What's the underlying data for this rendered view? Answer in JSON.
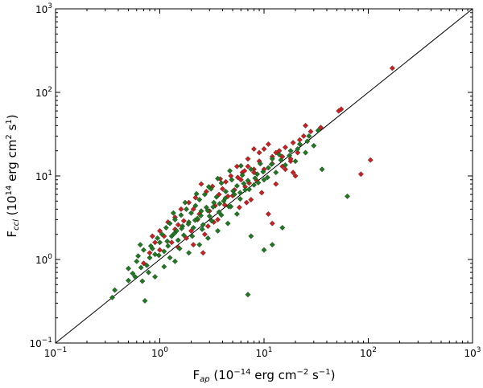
{
  "chart_data": {
    "type": "scatter",
    "xscale": "log",
    "yscale": "log",
    "xlim": [
      0.1,
      1000
    ],
    "ylim": [
      0.1,
      1000
    ],
    "grid": false,
    "xlabel": {
      "prefix": "F",
      "sub": "ap",
      "rest1": " (10",
      "exp1": "−14",
      "rest2": " erg cm",
      "exp2": "−2",
      "rest3": " s",
      "exp3": "−1",
      "rest4": ")"
    },
    "ylabel": {
      "prefix": "F",
      "sub": "ccl",
      "rest1": " (10",
      "exp1": "14",
      "rest2": " erg cm",
      "exp2": "2",
      "rest3": " s",
      "exp3": "1",
      "rest4": ")"
    },
    "x_ticks": [
      {
        "base": "10",
        "exp": "−1",
        "value": 0.1
      },
      {
        "base": "10",
        "exp": "0",
        "value": 1
      },
      {
        "base": "10",
        "exp": "1",
        "value": 10
      },
      {
        "base": "10",
        "exp": "2",
        "value": 100
      },
      {
        "base": "10",
        "exp": "3",
        "value": 1000
      }
    ],
    "y_ticks": [
      {
        "base": "10",
        "exp": "−1",
        "value": 0.1
      },
      {
        "base": "10",
        "exp": "0",
        "value": 1
      },
      {
        "base": "10",
        "exp": "1",
        "value": 10
      },
      {
        "base": "10",
        "exp": "2",
        "value": 100
      },
      {
        "base": "10",
        "exp": "3",
        "value": 1000
      }
    ],
    "reference_line": {
      "type": "one-to-one",
      "color": "#000000"
    },
    "series": [
      {
        "color": "#cc1f1f",
        "points": [
          [
            170,
            195
          ],
          [
            55,
            63
          ],
          [
            52,
            60
          ],
          [
            35,
            38
          ],
          [
            28,
            34
          ],
          [
            24,
            30
          ],
          [
            22,
            27
          ],
          [
            19,
            25
          ],
          [
            16,
            22
          ],
          [
            13,
            19
          ],
          [
            10,
            21
          ],
          [
            12,
            17
          ],
          [
            9,
            15
          ],
          [
            8,
            12
          ],
          [
            7,
            16
          ],
          [
            6.2,
            11
          ],
          [
            5.5,
            13
          ],
          [
            4.8,
            10
          ],
          [
            4.3,
            8.5
          ],
          [
            3.8,
            9.2
          ],
          [
            3.2,
            7.5
          ],
          [
            2.8,
            6.5
          ],
          [
            2.5,
            8
          ],
          [
            2.2,
            5.5
          ],
          [
            1.9,
            4.8
          ],
          [
            1.6,
            4.0
          ],
          [
            1.4,
            3.2
          ],
          [
            1.2,
            2.8
          ],
          [
            1.0,
            2.2
          ],
          [
            0.9,
            1.6
          ],
          [
            0.8,
            1.2
          ],
          [
            0.7,
            0.9
          ],
          [
            1.1,
            1.9
          ],
          [
            1.5,
            2.6
          ],
          [
            1.8,
            1.8
          ],
          [
            2.1,
            1.5
          ],
          [
            2.6,
            1.2
          ],
          [
            2.9,
            2.5
          ],
          [
            3.6,
            3.0
          ],
          [
            4.2,
            4.5
          ],
          [
            5.0,
            5.8
          ],
          [
            5.8,
            4.2
          ],
          [
            6.6,
            7.4
          ],
          [
            7.5,
            5.2
          ],
          [
            8.5,
            8.8
          ],
          [
            9.5,
            6.3
          ],
          [
            11,
            3.5
          ],
          [
            12,
            2.7
          ],
          [
            13,
            8.0
          ],
          [
            15,
            13
          ],
          [
            18,
            15
          ],
          [
            20,
            10
          ],
          [
            14,
            20
          ],
          [
            11,
            24
          ],
          [
            9,
            19
          ],
          [
            8,
            21
          ],
          [
            25,
            40
          ],
          [
            21,
            19
          ],
          [
            18,
            16
          ],
          [
            15,
            17
          ],
          [
            12,
            14
          ],
          [
            7,
            13
          ],
          [
            6,
            9
          ],
          [
            5.2,
            6.8
          ],
          [
            4.5,
            5.7
          ],
          [
            3.4,
            4.4
          ],
          [
            3.0,
            3.8
          ],
          [
            2.4,
            3.5
          ],
          [
            2.0,
            2.2
          ],
          [
            1.7,
            2.9
          ],
          [
            1.3,
            1.6
          ],
          [
            1.0,
            1.3
          ],
          [
            0.85,
            1.9
          ],
          [
            1.5,
            1.4
          ],
          [
            2.3,
            3.0
          ],
          [
            2.7,
            2.0
          ],
          [
            3.7,
            6.0
          ],
          [
            4.0,
            7.0
          ],
          [
            5.6,
            9.6
          ],
          [
            6.8,
            4.8
          ],
          [
            8,
            11
          ],
          [
            10,
            12
          ],
          [
            16,
            12
          ],
          [
            19,
            11
          ],
          [
            85,
            10.5
          ],
          [
            105,
            15.5
          ],
          [
            6.5,
            11.5
          ],
          [
            7.2,
            8.2
          ],
          [
            3.3,
            2.8
          ],
          [
            2.1,
            4.0
          ],
          [
            1.4,
            2.3
          ]
        ]
      },
      {
        "color": "#1e7a1e",
        "points": [
          [
            0.35,
            0.35
          ],
          [
            0.37,
            0.43
          ],
          [
            0.5,
            0.56
          ],
          [
            0.55,
            0.68
          ],
          [
            0.5,
            0.78
          ],
          [
            0.6,
            0.95
          ],
          [
            0.62,
            1.1
          ],
          [
            0.7,
            1.3
          ],
          [
            0.65,
            1.5
          ],
          [
            0.75,
            0.85
          ],
          [
            0.72,
            0.32
          ],
          [
            0.8,
            1.05
          ],
          [
            0.85,
            1.35
          ],
          [
            0.9,
            1.15
          ],
          [
            0.95,
            1.8
          ],
          [
            1.0,
            1.6
          ],
          [
            1.05,
            2.0
          ],
          [
            1.1,
            1.25
          ],
          [
            1.15,
            2.4
          ],
          [
            1.2,
            1.45
          ],
          [
            1.25,
            2.7
          ],
          [
            1.3,
            1.9
          ],
          [
            1.4,
            3.0
          ],
          [
            1.45,
            2.2
          ],
          [
            1.5,
            1.7
          ],
          [
            1.6,
            3.4
          ],
          [
            1.65,
            2.5
          ],
          [
            1.7,
            1.95
          ],
          [
            1.8,
            4.0
          ],
          [
            1.9,
            2.8
          ],
          [
            2.0,
            3.6
          ],
          [
            2.1,
            2.4
          ],
          [
            2.2,
            4.4
          ],
          [
            2.3,
            3.1
          ],
          [
            2.4,
            5.2
          ],
          [
            2.5,
            3.8
          ],
          [
            2.6,
            2.6
          ],
          [
            2.7,
            6.0
          ],
          [
            2.8,
            4.2
          ],
          [
            3.0,
            3.3
          ],
          [
            3.1,
            7.0
          ],
          [
            3.3,
            4.8
          ],
          [
            3.5,
            5.6
          ],
          [
            3.7,
            3.7
          ],
          [
            3.9,
            8.2
          ],
          [
            4.1,
            5.0
          ],
          [
            4.3,
            6.5
          ],
          [
            4.6,
            4.3
          ],
          [
            4.9,
            9.0
          ],
          [
            5.2,
            6.0
          ],
          [
            5.5,
            7.6
          ],
          [
            5.9,
            5.3
          ],
          [
            6.2,
            10.2
          ],
          [
            6.6,
            6.8
          ],
          [
            7.0,
            8.8
          ],
          [
            7.5,
            12
          ],
          [
            8.0,
            7.8
          ],
          [
            8.6,
            10.5
          ],
          [
            9.2,
            14
          ],
          [
            10,
            9.0
          ],
          [
            11,
            12.5
          ],
          [
            12,
            16
          ],
          [
            13,
            11
          ],
          [
            14,
            18
          ],
          [
            16,
            13.5
          ],
          [
            18,
            20
          ],
          [
            20,
            15
          ],
          [
            22,
            24
          ],
          [
            25,
            19
          ],
          [
            27,
            30
          ],
          [
            30,
            23
          ],
          [
            33,
            35
          ],
          [
            36,
            12
          ],
          [
            63,
            5.7
          ],
          [
            15,
            2.4
          ],
          [
            12,
            1.5
          ],
          [
            10,
            1.3
          ],
          [
            7.5,
            1.9
          ],
          [
            7.0,
            0.38
          ],
          [
            5.5,
            3.5
          ],
          [
            4.5,
            2.7
          ],
          [
            3.6,
            2.2
          ],
          [
            2.9,
            1.8
          ],
          [
            2.4,
            1.5
          ],
          [
            1.9,
            1.2
          ],
          [
            1.4,
            0.95
          ],
          [
            1.1,
            0.82
          ],
          [
            0.9,
            0.62
          ],
          [
            0.78,
            0.7
          ],
          [
            0.68,
            0.55
          ],
          [
            1.25,
            1.05
          ],
          [
            1.55,
            1.35
          ],
          [
            2.05,
            1.9
          ],
          [
            2.55,
            2.3
          ],
          [
            3.15,
            2.9
          ],
          [
            3.9,
            3.4
          ],
          [
            4.8,
            4.3
          ],
          [
            5.9,
            6.3
          ],
          [
            7.2,
            6.9
          ],
          [
            8.8,
            8.3
          ],
          [
            10.8,
            9.6
          ],
          [
            1.35,
            3.6
          ],
          [
            1.75,
            4.8
          ],
          [
            2.25,
            6.1
          ],
          [
            2.95,
            7.4
          ],
          [
            3.6,
            9.3
          ],
          [
            4.7,
            11.5
          ],
          [
            6.0,
            13.2
          ],
          [
            0.58,
            0.62
          ],
          [
            0.66,
            0.8
          ],
          [
            0.82,
            1.45
          ],
          [
            0.98,
            1.12
          ],
          [
            1.18,
            1.65
          ],
          [
            1.38,
            2.05
          ],
          [
            1.62,
            2.35
          ],
          [
            1.88,
            2.65
          ],
          [
            2.18,
            2.95
          ],
          [
            2.48,
            3.35
          ],
          [
            2.88,
            3.85
          ],
          [
            3.25,
            4.25
          ],
          [
            3.75,
            4.65
          ],
          [
            4.25,
            5.4
          ],
          [
            5.05,
            6.6
          ],
          [
            6.4,
            8.1
          ],
          [
            8.2,
            9.4
          ],
          [
            9.8,
            11.2
          ],
          [
            11.8,
            13.8
          ],
          [
            14.5,
            15.5
          ],
          [
            17.5,
            17.5
          ],
          [
            21,
            21
          ],
          [
            26,
            26
          ]
        ]
      }
    ]
  }
}
